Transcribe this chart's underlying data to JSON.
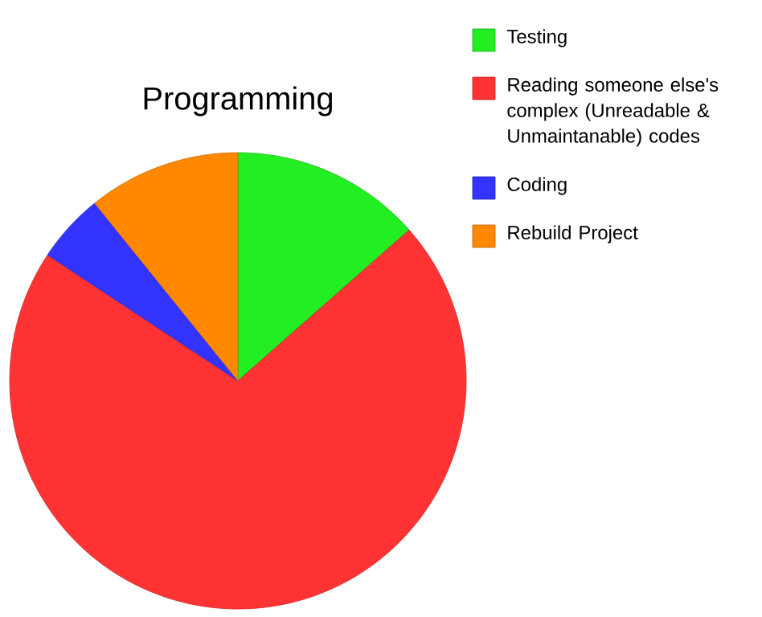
{
  "chart_data": {
    "type": "pie",
    "title": "Programming",
    "categories": [
      "Testing",
      "Reading someone else's complex (Unreadable & Unmaintanable) codes",
      "Coding",
      "Rebuild Project"
    ],
    "values": [
      13.5,
      70.8,
      4.9,
      10.8
    ],
    "colors": [
      "#22ee22",
      "#ff3333",
      "#3333ff",
      "#ff8800"
    ],
    "legend": "right"
  }
}
